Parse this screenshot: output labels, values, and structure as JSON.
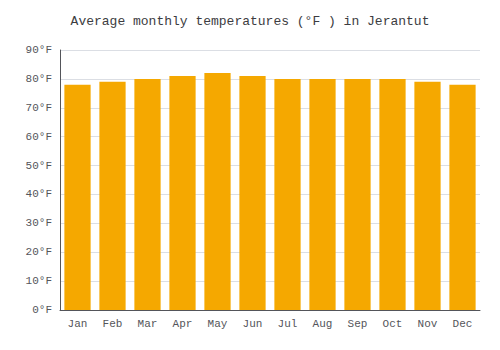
{
  "chart_data": {
    "type": "bar",
    "title": "Average monthly temperatures (°F ) in Jerantut",
    "categories": [
      "Jan",
      "Feb",
      "Mar",
      "Apr",
      "May",
      "Jun",
      "Jul",
      "Aug",
      "Sep",
      "Oct",
      "Nov",
      "Dec"
    ],
    "values": [
      78,
      79,
      80,
      81,
      82,
      81,
      80,
      80,
      80,
      80,
      79,
      78
    ],
    "color": "#F5A800",
    "ylim": [
      0,
      90
    ],
    "yticks": [
      {
        "value": 0,
        "label": "0°F"
      },
      {
        "value": 10,
        "label": "10°F"
      },
      {
        "value": 20,
        "label": "20°F"
      },
      {
        "value": 30,
        "label": "30°F"
      },
      {
        "value": 40,
        "label": "40°F"
      },
      {
        "value": 50,
        "label": "50°F"
      },
      {
        "value": 60,
        "label": "60°F"
      },
      {
        "value": 70,
        "label": "70°F"
      },
      {
        "value": 80,
        "label": "80°F"
      },
      {
        "value": 90,
        "label": "90°F"
      }
    ],
    "grid": true
  }
}
